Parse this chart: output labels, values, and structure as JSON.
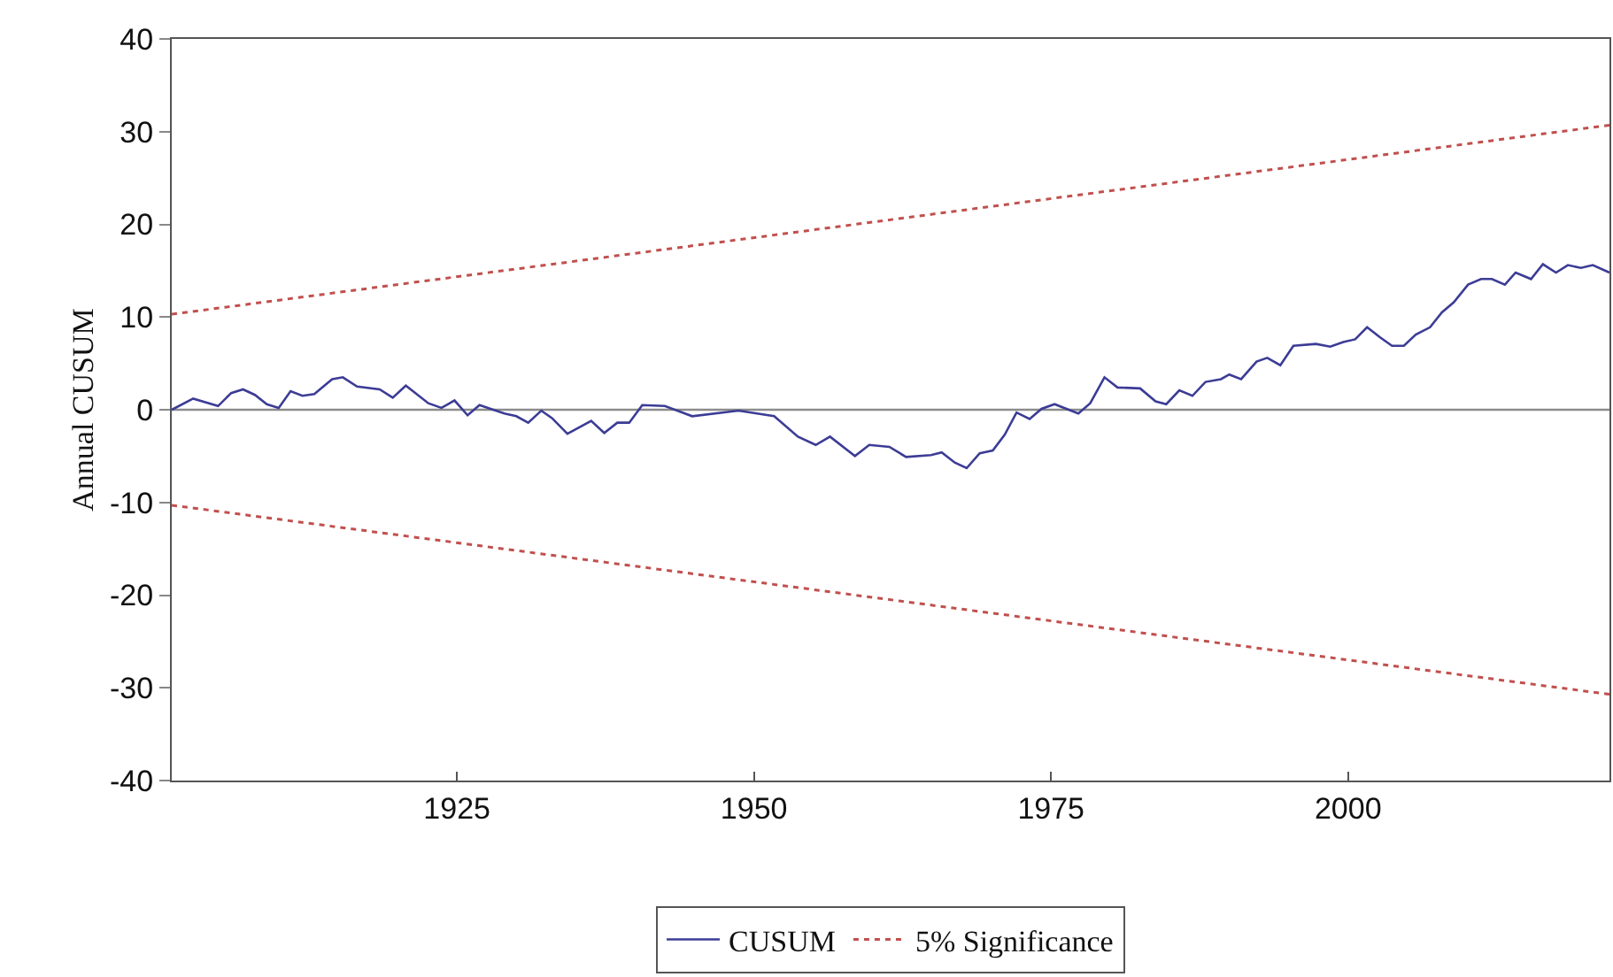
{
  "chart_data": {
    "type": "line",
    "ylabel": "Annual CUSUM",
    "xlim": [
      1901,
      2022
    ],
    "xticks": [
      1925,
      1950,
      1975,
      2000
    ],
    "ylim": [
      -40,
      40
    ],
    "yticks": [
      -40,
      -30,
      -20,
      -10,
      0,
      10,
      20,
      30,
      40
    ],
    "grid": false,
    "legend": "bottom",
    "marker": "none",
    "ref_lines": [
      {
        "axis": "y",
        "value": 0,
        "color": "#8c8c8c",
        "line_style": "solid"
      }
    ],
    "series": [
      {
        "name": "CUSUM",
        "color": "#3c3c96",
        "line_style": "solid",
        "x": [
          1901,
          1902.8,
          1904.9,
          1906,
          1907,
          1908,
          1909,
          1910,
          1911,
          1912,
          1913,
          1914.5,
          1915.4,
          1916.6,
          1918.5,
          1919.6,
          1920.7,
          1922.6,
          1923.7,
          1924.8,
          1925.9,
          1926.9,
          1929,
          1930,
          1931,
          1932.1,
          1933,
          1934.3,
          1936.3,
          1937.4,
          1938.5,
          1939.5,
          1940.6,
          1942.5,
          1944.8,
          1948.7,
          1951.7,
          1953.7,
          1955.2,
          1956.4,
          1958.5,
          1959.7,
          1961.4,
          1962.8,
          1964.9,
          1965.8,
          1966.9,
          1967.9,
          1969,
          1970.1,
          1971.1,
          1972.1,
          1973.2,
          1974.2,
          1975.3,
          1977.3,
          1978.3,
          1979.5,
          1980.6,
          1982.5,
          1983.8,
          1984.7,
          1985.8,
          1986.9,
          1988,
          1989.3,
          1990,
          1991,
          1992.3,
          1993.2,
          1994.3,
          1995.4,
          1997.3,
          1998.5,
          1999.6,
          2000.6,
          2001.6,
          2002.7,
          2003.7,
          2004.7,
          2005.7,
          2006.9,
          2007.9,
          2008.9,
          2010.1,
          2011.2,
          2012.1,
          2013.2,
          2014.1,
          2015.4,
          2016.4,
          2017.5,
          2018.5,
          2019.6,
          2020.6,
          2022
        ],
        "values": [
          0,
          1.2,
          0.4,
          1.8,
          2.2,
          1.6,
          0.6,
          0.2,
          2.0,
          1.5,
          1.7,
          3.3,
          3.5,
          2.5,
          2.2,
          1.3,
          2.6,
          0.7,
          0.2,
          1.0,
          -0.6,
          0.5,
          -0.4,
          -0.7,
          -1.4,
          -0.1,
          -0.9,
          -2.6,
          -1.2,
          -2.5,
          -1.4,
          -1.4,
          0.5,
          0.4,
          -0.7,
          -0.1,
          -0.7,
          -2.9,
          -3.8,
          -2.9,
          -5.0,
          -3.8,
          -4.0,
          -5.1,
          -4.9,
          -4.6,
          -5.7,
          -6.3,
          -4.7,
          -4.4,
          -2.7,
          -0.3,
          -1.0,
          0.1,
          0.6,
          -0.4,
          0.7,
          3.5,
          2.4,
          2.3,
          0.9,
          0.6,
          2.1,
          1.5,
          3.0,
          3.3,
          3.8,
          3.3,
          5.2,
          5.6,
          4.8,
          6.9,
          7.1,
          6.8,
          7.3,
          7.6,
          8.9,
          7.8,
          6.9,
          6.9,
          8.1,
          8.9,
          10.5,
          11.6,
          13.5,
          14.1,
          14.1,
          13.5,
          14.8,
          14.1,
          15.7,
          14.8,
          15.6,
          15.3,
          15.6,
          14.8
        ]
      },
      {
        "name": "5% Significance",
        "color": "#c0504d",
        "line_style": "dotted",
        "x": [
          1901,
          2022
        ],
        "values": [
          10.3,
          30.7
        ]
      },
      {
        "color": "#c0504d",
        "line_style": "dotted",
        "x": [
          1901,
          2022
        ],
        "values": [
          -10.3,
          -30.7
        ]
      }
    ]
  }
}
